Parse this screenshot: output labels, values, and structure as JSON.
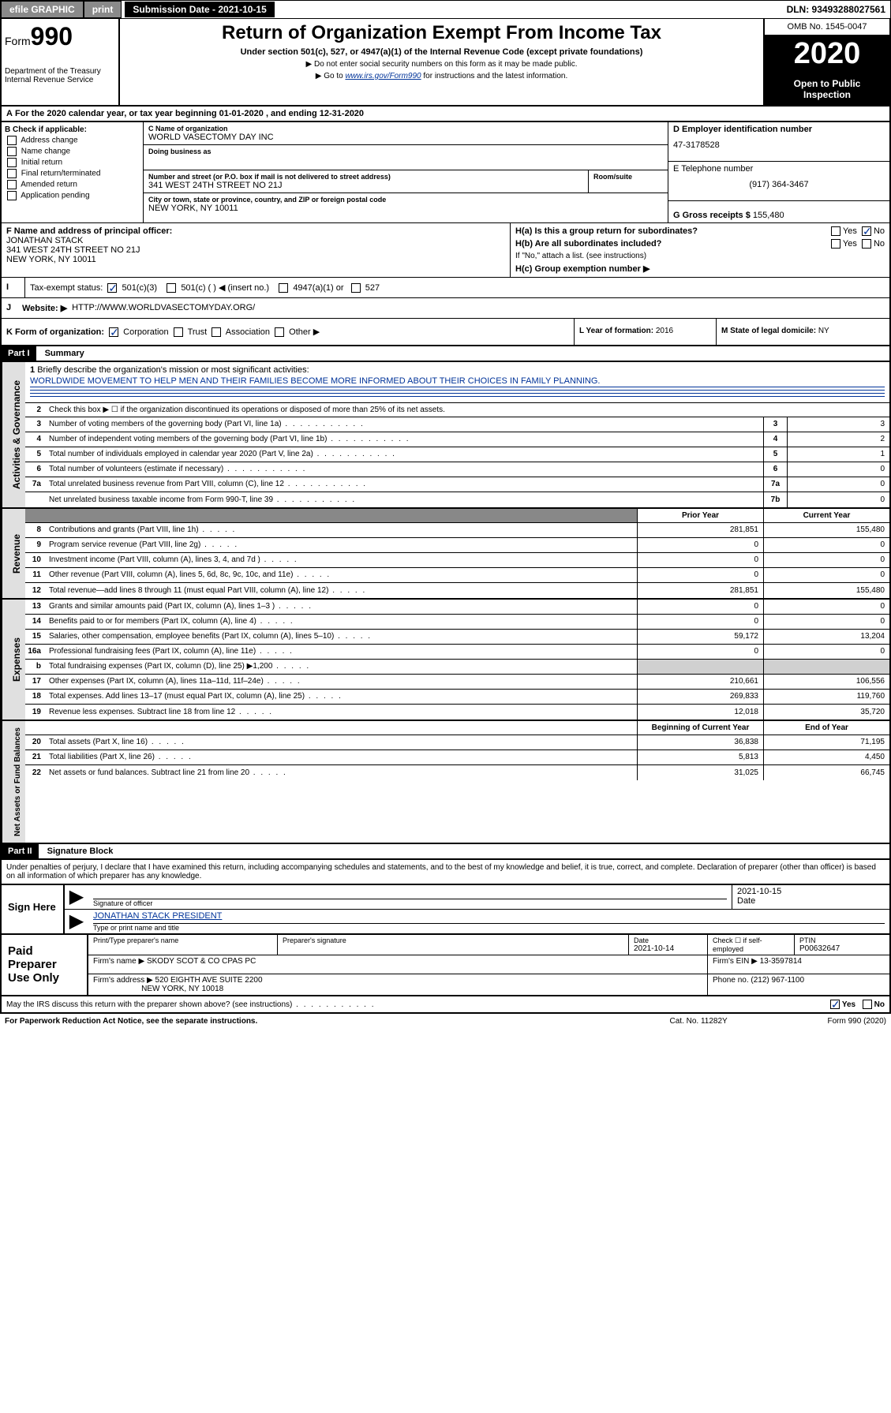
{
  "top": {
    "efile_label": "efile GRAPHIC",
    "print_btn": "print",
    "submission": "Submission Date - 2021-10-15",
    "dln": "DLN: 93493288027561"
  },
  "header": {
    "form_prefix": "Form",
    "form_number": "990",
    "dept": "Department of the Treasury\nInternal Revenue Service",
    "title": "Return of Organization Exempt From Income Tax",
    "subtitle": "Under section 501(c), 527, or 4947(a)(1) of the Internal Revenue Code (except private foundations)",
    "note1": "▶ Do not enter social security numbers on this form as it may be made public.",
    "note2_pre": "▶ Go to ",
    "note2_link": "www.irs.gov/Form990",
    "note2_post": " for instructions and the latest information.",
    "omb": "OMB No. 1545-0047",
    "tax_year": "2020",
    "open_public": "Open to Public Inspection"
  },
  "period": "For the 2020 calendar year, or tax year beginning 01-01-2020     , and ending 12-31-2020",
  "box_b": {
    "label": "B Check if applicable:",
    "opts": [
      "Address change",
      "Name change",
      "Initial return",
      "Final return/terminated",
      "Amended return",
      "Application pending"
    ]
  },
  "box_c": {
    "name_label": "C Name of organization",
    "name": "WORLD VASECTOMY DAY INC",
    "dba_label": "Doing business as",
    "dba": "",
    "street_label": "Number and street (or P.O. box if mail is not delivered to street address)",
    "room_label": "Room/suite",
    "street": "341 WEST 24TH STREET NO 21J",
    "city_label": "City or town, state or province, country, and ZIP or foreign postal code",
    "city": "NEW YORK, NY  10011"
  },
  "box_d": {
    "label": "D Employer identification number",
    "val": "47-3178528"
  },
  "box_e": {
    "label": "E Telephone number",
    "val": "(917) 364-3467"
  },
  "box_g": {
    "label": "G Gross receipts $",
    "val": "155,480"
  },
  "box_f": {
    "label": "F  Name and address of principal officer:",
    "name": "JONATHAN STACK",
    "addr1": "341 WEST 24TH STREET NO 21J",
    "addr2": "NEW YORK, NY  10011"
  },
  "box_h": {
    "a": "H(a)  Is this a group return for subordinates?",
    "b": "H(b)  Are all subordinates included?",
    "b_note": "If \"No,\" attach a list. (see instructions)",
    "c": "H(c)  Group exemption number ▶",
    "yes": "Yes",
    "no": "No"
  },
  "box_i": {
    "label": "Tax-exempt status:",
    "opt1": "501(c)(3)",
    "opt2": "501(c) (   ) ◀ (insert no.)",
    "opt3": "4947(a)(1) or",
    "opt4": "527"
  },
  "box_j": {
    "label": "Website: ▶",
    "val": "HTTP://WWW.WORLDVASECTOMYDAY.ORG/"
  },
  "box_k": {
    "label": "K Form of organization:",
    "opts": [
      "Corporation",
      "Trust",
      "Association",
      "Other ▶"
    ]
  },
  "box_l": {
    "label": "L Year of formation:",
    "val": "2016"
  },
  "box_m": {
    "label": "M State of legal domicile:",
    "val": "NY"
  },
  "part1": {
    "header": "Part I",
    "title": "Summary"
  },
  "summary": {
    "q1": "Briefly describe the organization's mission or most significant activities:",
    "mission": "WORLDWIDE MOVEMENT TO HELP MEN AND THEIR FAMILIES BECOME MORE INFORMED ABOUT THEIR CHOICES IN FAMILY PLANNING.",
    "q2": "Check this box ▶ ☐  if the organization discontinued its operations or disposed of more than 25% of its net assets.",
    "lines_single": [
      {
        "n": "3",
        "d": "Number of voting members of the governing body (Part VI, line 1a)",
        "box": "3",
        "v": "3"
      },
      {
        "n": "4",
        "d": "Number of independent voting members of the governing body (Part VI, line 1b)",
        "box": "4",
        "v": "2"
      },
      {
        "n": "5",
        "d": "Total number of individuals employed in calendar year 2020 (Part V, line 2a)",
        "box": "5",
        "v": "1"
      },
      {
        "n": "6",
        "d": "Total number of volunteers (estimate if necessary)",
        "box": "6",
        "v": "0"
      },
      {
        "n": "7a",
        "d": "Total unrelated business revenue from Part VIII, column (C), line 12",
        "box": "7a",
        "v": "0"
      },
      {
        "n": "",
        "d": "Net unrelated business taxable income from Form 990-T, line 39",
        "box": "7b",
        "v": "0"
      }
    ],
    "col_prior": "Prior Year",
    "col_current": "Current Year",
    "revenue": [
      {
        "n": "8",
        "d": "Contributions and grants (Part VIII, line 1h)",
        "p": "281,851",
        "c": "155,480"
      },
      {
        "n": "9",
        "d": "Program service revenue (Part VIII, line 2g)",
        "p": "0",
        "c": "0"
      },
      {
        "n": "10",
        "d": "Investment income (Part VIII, column (A), lines 3, 4, and 7d )",
        "p": "0",
        "c": "0"
      },
      {
        "n": "11",
        "d": "Other revenue (Part VIII, column (A), lines 5, 6d, 8c, 9c, 10c, and 11e)",
        "p": "0",
        "c": "0"
      },
      {
        "n": "12",
        "d": "Total revenue—add lines 8 through 11 (must equal Part VIII, column (A), line 12)",
        "p": "281,851",
        "c": "155,480"
      }
    ],
    "expenses": [
      {
        "n": "13",
        "d": "Grants and similar amounts paid (Part IX, column (A), lines 1–3 )",
        "p": "0",
        "c": "0"
      },
      {
        "n": "14",
        "d": "Benefits paid to or for members (Part IX, column (A), line 4)",
        "p": "0",
        "c": "0"
      },
      {
        "n": "15",
        "d": "Salaries, other compensation, employee benefits (Part IX, column (A), lines 5–10)",
        "p": "59,172",
        "c": "13,204"
      },
      {
        "n": "16a",
        "d": "Professional fundraising fees (Part IX, column (A), line 11e)",
        "p": "0",
        "c": "0"
      },
      {
        "n": "b",
        "d": "Total fundraising expenses (Part IX, column (D), line 25) ▶1,200",
        "p": "",
        "c": "",
        "shaded": true
      },
      {
        "n": "17",
        "d": "Other expenses (Part IX, column (A), lines 11a–11d, 11f–24e)",
        "p": "210,661",
        "c": "106,556"
      },
      {
        "n": "18",
        "d": "Total expenses. Add lines 13–17 (must equal Part IX, column (A), line 25)",
        "p": "269,833",
        "c": "119,760"
      },
      {
        "n": "19",
        "d": "Revenue less expenses. Subtract line 18 from line 12",
        "p": "12,018",
        "c": "35,720"
      }
    ],
    "col_beg": "Beginning of Current Year",
    "col_end": "End of Year",
    "netassets": [
      {
        "n": "20",
        "d": "Total assets (Part X, line 16)",
        "p": "36,838",
        "c": "71,195"
      },
      {
        "n": "21",
        "d": "Total liabilities (Part X, line 26)",
        "p": "5,813",
        "c": "4,450"
      },
      {
        "n": "22",
        "d": "Net assets or fund balances. Subtract line 21 from line 20",
        "p": "31,025",
        "c": "66,745"
      }
    ],
    "vert_gov": "Activities & Governance",
    "vert_rev": "Revenue",
    "vert_exp": "Expenses",
    "vert_net": "Net Assets or Fund Balances"
  },
  "part2": {
    "header": "Part II",
    "title": "Signature Block"
  },
  "declaration": "Under penalties of perjury, I declare that I have examined this return, including accompanying schedules and statements, and to the best of my knowledge and belief, it is true, correct, and complete. Declaration of preparer (other than officer) is based on all information of which preparer has any knowledge.",
  "sign": {
    "label": "Sign Here",
    "sig_label": "Signature of officer",
    "date_label": "Date",
    "date": "2021-10-15",
    "name": "JONATHAN STACK  PRESIDENT",
    "name_label": "Type or print name and title"
  },
  "paid": {
    "label": "Paid Preparer Use Only",
    "h1": "Print/Type preparer's name",
    "h2": "Preparer's signature",
    "h3": "Date",
    "h4": "Check ☐ if self-employed",
    "h5": "PTIN",
    "date": "2021-10-14",
    "ptin": "P00632647",
    "firm_label": "Firm's name      ▶",
    "firm": "SKODY SCOT & CO CPAS PC",
    "ein_label": "Firm's EIN ▶",
    "ein": "13-3597814",
    "addr_label": "Firm's address ▶",
    "addr1": "520 EIGHTH AVE SUITE 2200",
    "addr2": "NEW YORK, NY  10018",
    "phone_label": "Phone no.",
    "phone": "(212) 967-1100"
  },
  "discuss": {
    "q": "May the IRS discuss this return with the preparer shown above? (see instructions)",
    "yes": "Yes",
    "no": "No"
  },
  "footer": {
    "left": "For Paperwork Reduction Act Notice, see the separate instructions.",
    "mid": "Cat. No. 11282Y",
    "right": "Form 990 (2020)"
  }
}
